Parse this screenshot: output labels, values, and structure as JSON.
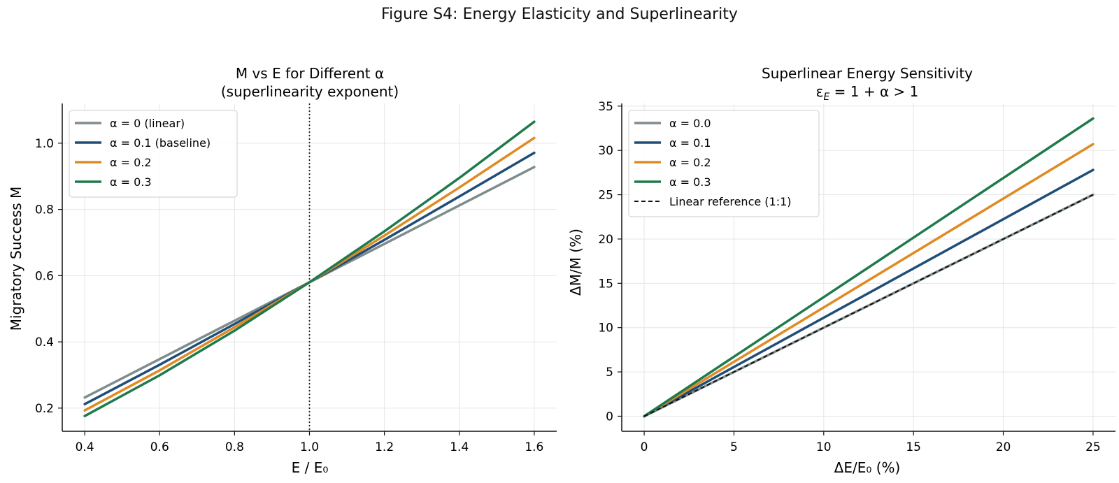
{
  "figure": {
    "title": "Figure S4: Energy Elasticity and Superlinearity"
  },
  "chart_data": [
    {
      "type": "line",
      "title_line1": "M vs E for Different α",
      "title_line2": "(superlinearity exponent)",
      "xlabel": "E / E₀",
      "ylabel": "Migratory Success M",
      "xlim": [
        0.34,
        1.66
      ],
      "ylim": [
        0.13,
        1.12
      ],
      "xticks": [
        0.4,
        0.6,
        0.8,
        1.0,
        1.2,
        1.4,
        1.6
      ],
      "xtick_labels": [
        "0.4",
        "0.6",
        "0.8",
        "1.0",
        "1.2",
        "1.4",
        "1.6"
      ],
      "yticks": [
        0.2,
        0.4,
        0.6,
        0.8,
        1.0
      ],
      "ytick_labels": [
        "0.2",
        "0.4",
        "0.6",
        "0.8",
        "1.0"
      ],
      "grid": true,
      "legend": "top-left",
      "vline": {
        "x": 1.0,
        "style": "dotted",
        "color": "#222222"
      },
      "series": [
        {
          "name": "α = 0 (linear)",
          "color": "#7f8c8d",
          "x": [
            0.4,
            0.6,
            0.8,
            1.0,
            1.2,
            1.4,
            1.6
          ],
          "y": [
            0.232,
            0.348,
            0.464,
            0.58,
            0.696,
            0.812,
            0.928
          ]
        },
        {
          "name": "α = 0.1 (baseline)",
          "color": "#1f4e79",
          "x": [
            0.4,
            0.6,
            0.8,
            1.0,
            1.2,
            1.4,
            1.6
          ],
          "y": [
            0.212,
            0.331,
            0.454,
            0.58,
            0.708,
            0.839,
            0.971
          ]
        },
        {
          "name": "α = 0.2",
          "color": "#e08a24",
          "x": [
            0.4,
            0.6,
            0.8,
            1.0,
            1.2,
            1.4,
            1.6
          ],
          "y": [
            0.193,
            0.314,
            0.444,
            0.58,
            0.721,
            0.866,
            1.016
          ]
        },
        {
          "name": "α = 0.3",
          "color": "#1e7a4c",
          "x": [
            0.4,
            0.6,
            0.8,
            1.0,
            1.2,
            1.4,
            1.6
          ],
          "y": [
            0.176,
            0.299,
            0.434,
            0.58,
            0.734,
            0.895,
            1.065
          ]
        }
      ]
    },
    {
      "type": "line",
      "title_line1": "Superlinear Energy Sensitivity",
      "title_eps": "ε",
      "title_sub": "E",
      "title_rest": " = 1 + α > 1",
      "xlabel": "ΔE/E₀ (%)",
      "ylabel": "ΔM/M (%)",
      "xlim": [
        -1.25,
        26.25
      ],
      "ylim": [
        -1.7,
        35.3
      ],
      "xticks": [
        0,
        5,
        10,
        15,
        20,
        25
      ],
      "xtick_labels": [
        "0",
        "5",
        "10",
        "15",
        "20",
        "25"
      ],
      "yticks": [
        0,
        5,
        10,
        15,
        20,
        25,
        30,
        35
      ],
      "ytick_labels": [
        "0",
        "5",
        "10",
        "15",
        "20",
        "25",
        "30",
        "35"
      ],
      "grid": true,
      "legend": "top-left",
      "series": [
        {
          "name": "α = 0.0",
          "color": "#7f8c8d",
          "x": [
            0,
            25
          ],
          "y": [
            0,
            25.0
          ]
        },
        {
          "name": "α = 0.1",
          "color": "#1f4e79",
          "x": [
            0,
            25
          ],
          "y": [
            0,
            27.8
          ]
        },
        {
          "name": "α = 0.2",
          "color": "#e08a24",
          "x": [
            0,
            25
          ],
          "y": [
            0,
            30.7
          ]
        },
        {
          "name": "α = 0.3",
          "color": "#1e7a4c",
          "x": [
            0,
            25
          ],
          "y": [
            0,
            33.6
          ]
        },
        {
          "name": "Linear reference (1:1)",
          "color": "#111111",
          "dashed": true,
          "x": [
            0,
            25
          ],
          "y": [
            0,
            25.0
          ]
        }
      ]
    }
  ]
}
